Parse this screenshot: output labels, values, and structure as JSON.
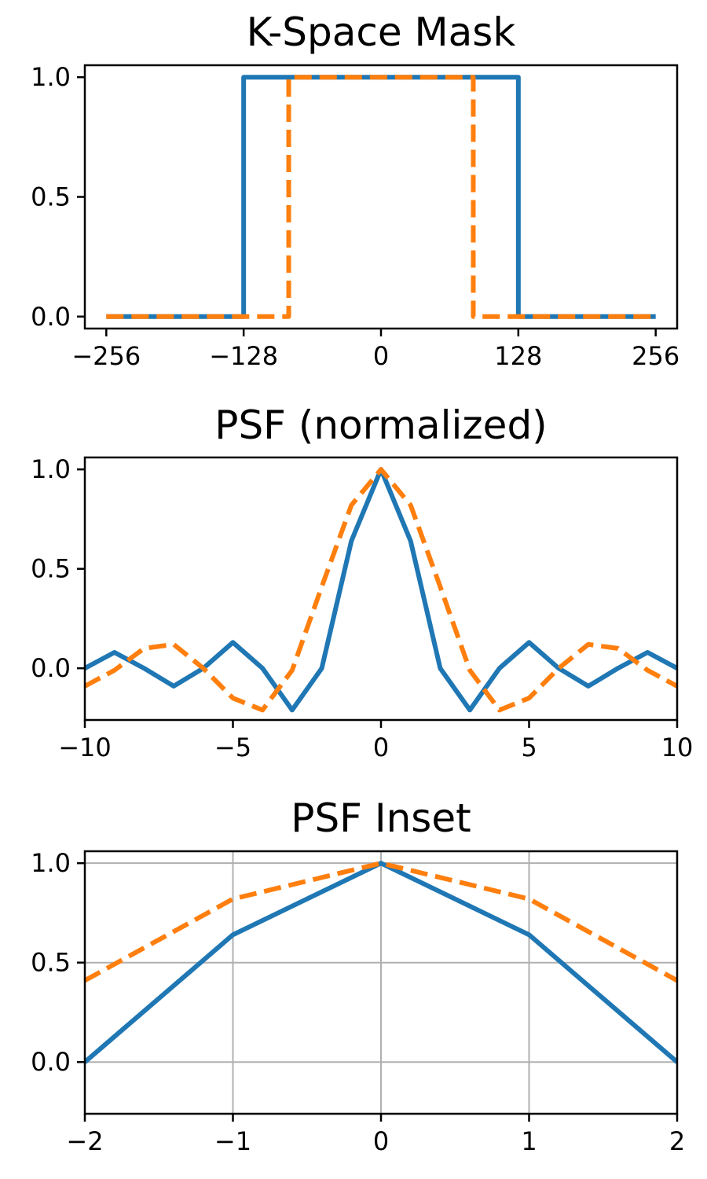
{
  "colors": {
    "series_a": "#1f77b4",
    "series_b": "#ff7f0e",
    "grid": "#b0b0b0"
  },
  "chart_data": [
    {
      "type": "line",
      "title": "K-Space Mask",
      "xlabel": "",
      "ylabel": "",
      "xlim": [
        -276,
        276
      ],
      "ylim": [
        -0.05,
        1.05
      ],
      "xticks": [
        -256,
        -128,
        0,
        128,
        256
      ],
      "xtick_labels": [
        "−256",
        "−128",
        "0",
        "128",
        "256"
      ],
      "yticks": [
        0.0,
        0.5,
        1.0
      ],
      "ytick_labels": [
        "0.0",
        "0.5",
        "1.0"
      ],
      "grid": false,
      "series": [
        {
          "style": "solid",
          "color": "#1f77b4",
          "x": [
            -256,
            -128,
            -128,
            128,
            128,
            256
          ],
          "y": [
            0,
            0,
            1,
            1,
            0,
            0
          ]
        },
        {
          "style": "dashed",
          "color": "#ff7f0e",
          "x": [
            -256,
            -86,
            -86,
            86,
            86,
            256
          ],
          "y": [
            0,
            0,
            1,
            1,
            0,
            0
          ]
        }
      ]
    },
    {
      "type": "line",
      "title": "PSF (normalized)",
      "xlabel": "",
      "ylabel": "",
      "xlim": [
        -10,
        10
      ],
      "ylim": [
        -0.26,
        1.06
      ],
      "xticks": [
        -10,
        -5,
        0,
        5,
        10
      ],
      "xtick_labels": [
        "−10",
        "−5",
        "0",
        "5",
        "10"
      ],
      "yticks": [
        0.0,
        0.5,
        1.0
      ],
      "ytick_labels": [
        "0.0",
        "0.5",
        "1.0"
      ],
      "grid": false,
      "series": [
        {
          "style": "solid",
          "color": "#1f77b4",
          "x": [
            -10,
            -9,
            -8,
            -7,
            -6,
            -5,
            -4,
            -3,
            -2,
            -1,
            0,
            1,
            2,
            3,
            4,
            5,
            6,
            7,
            8,
            9,
            10
          ],
          "y": [
            0.0,
            0.08,
            0.0,
            -0.09,
            0.0,
            0.13,
            0.0,
            -0.21,
            0.0,
            0.64,
            1.0,
            0.64,
            0.0,
            -0.21,
            0.0,
            0.13,
            0.0,
            -0.09,
            0.0,
            0.08,
            0.0
          ]
        },
        {
          "style": "dashed",
          "color": "#ff7f0e",
          "x": [
            -10,
            -9,
            -8,
            -7,
            -6,
            -5,
            -4,
            -3,
            -2,
            -1,
            0,
            1,
            2,
            3,
            4,
            5,
            6,
            7,
            8,
            9,
            10
          ],
          "y": [
            -0.09,
            -0.01,
            0.1,
            0.12,
            0.0,
            -0.15,
            -0.21,
            -0.01,
            0.41,
            0.82,
            1.0,
            0.82,
            0.41,
            -0.01,
            -0.21,
            -0.15,
            0.0,
            0.12,
            0.1,
            -0.01,
            -0.09
          ]
        }
      ]
    },
    {
      "type": "line",
      "title": "PSF Inset",
      "xlabel": "",
      "ylabel": "",
      "xlim": [
        -2,
        2
      ],
      "ylim": [
        -0.26,
        1.06
      ],
      "xticks": [
        -2,
        -1,
        0,
        1,
        2
      ],
      "xtick_labels": [
        "−2",
        "−1",
        "0",
        "1",
        "2"
      ],
      "yticks": [
        0.0,
        0.5,
        1.0
      ],
      "ytick_labels": [
        "0.0",
        "0.5",
        "1.0"
      ],
      "grid": true,
      "series": [
        {
          "style": "solid",
          "color": "#1f77b4",
          "x": [
            -2,
            -1,
            0,
            1,
            2
          ],
          "y": [
            0.0,
            0.64,
            1.0,
            0.64,
            0.0
          ]
        },
        {
          "style": "dashed",
          "color": "#ff7f0e",
          "x": [
            -2,
            -1,
            0,
            1,
            2
          ],
          "y": [
            0.41,
            0.82,
            1.0,
            0.82,
            0.41
          ]
        }
      ]
    }
  ]
}
